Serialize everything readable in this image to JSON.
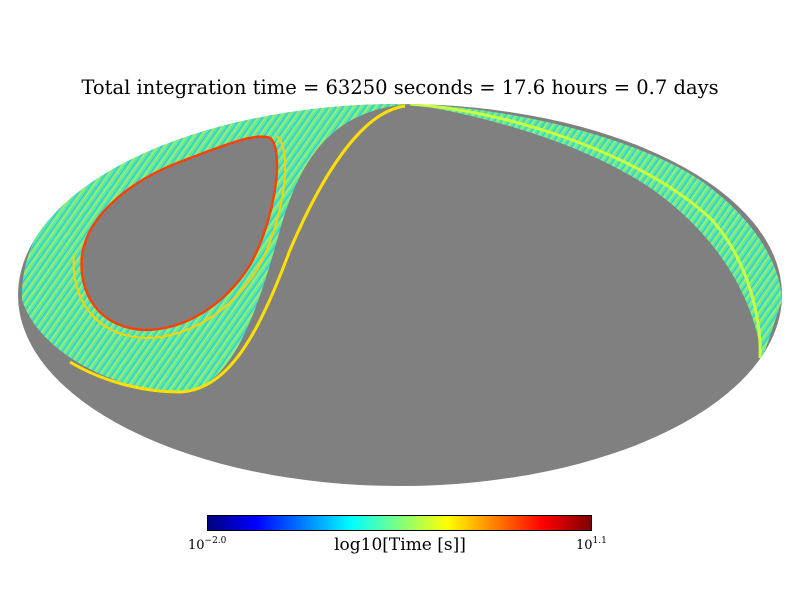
{
  "map": {
    "title": "Total integration time = 63250 seconds = 17.6 hours = 0.7 days",
    "projection": "mollweide",
    "unseen_color": "#808080",
    "background_color": "#ffffff",
    "colormap": "jet"
  },
  "colorbar": {
    "label": "log10[Time [s]]",
    "min_base": "10",
    "min_exp": "−2.0",
    "max_base": "10",
    "max_exp": "1.1",
    "vmin": -2.0,
    "vmax": 1.1
  }
}
